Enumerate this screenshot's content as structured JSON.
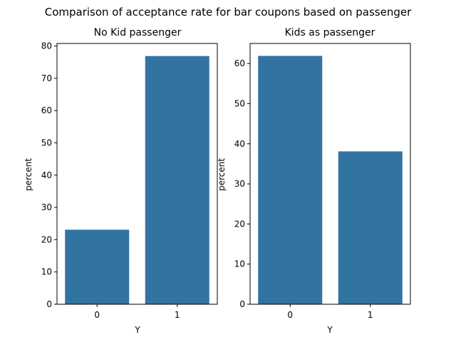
{
  "suptitle": "Comparison of acceptance rate for bar coupons based on passenger",
  "chart_data": [
    {
      "type": "bar",
      "title": "No Kid passenger",
      "xlabel": "Y",
      "ylabel": "percent",
      "categories": [
        "0",
        "1"
      ],
      "values": [
        23.1,
        76.9
      ],
      "ylim": [
        0,
        80.8
      ],
      "yticks": [
        0,
        10,
        20,
        30,
        40,
        50,
        60,
        70,
        80
      ],
      "color": "#3274a1",
      "grid": false
    },
    {
      "type": "bar",
      "title": "Kids as passenger",
      "xlabel": "Y",
      "ylabel": "percent",
      "categories": [
        "0",
        "1"
      ],
      "values": [
        61.9,
        38.1
      ],
      "ylim": [
        0,
        65
      ],
      "yticks": [
        0,
        10,
        20,
        30,
        40,
        50,
        60
      ],
      "color": "#3274a1",
      "grid": false
    }
  ]
}
